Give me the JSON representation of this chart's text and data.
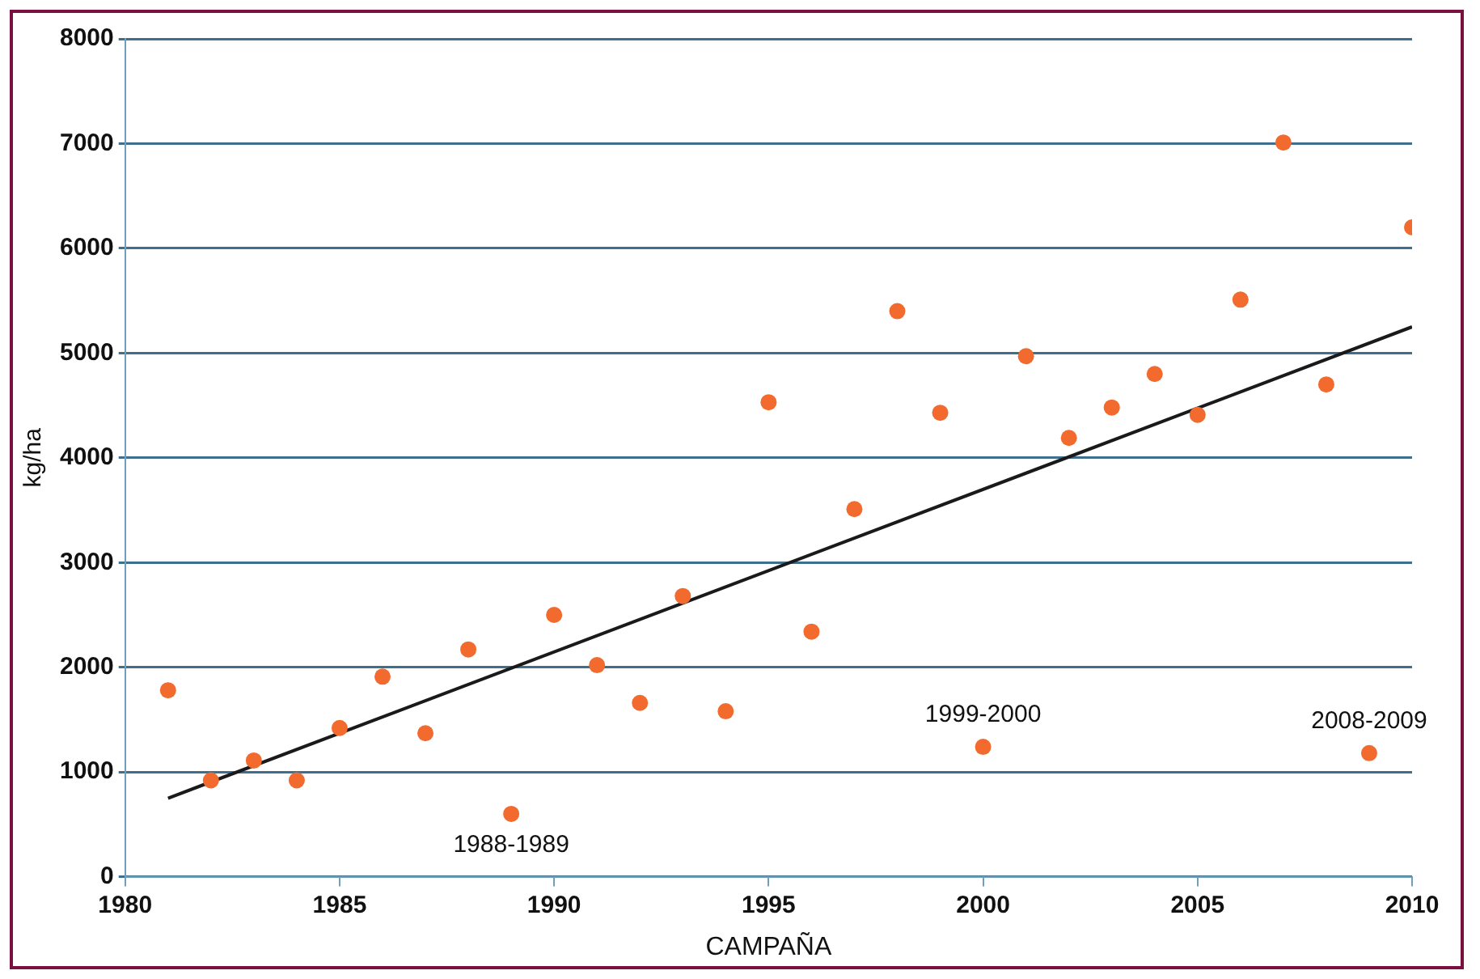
{
  "chart_data": {
    "type": "scatter",
    "xlabel": "CAMPAÑA",
    "ylabel": "kg/ha",
    "xlim": [
      1980,
      2010
    ],
    "xticks": [
      1980,
      1985,
      1990,
      1995,
      2000,
      2005,
      2010
    ],
    "ylim": [
      0,
      8000
    ],
    "yticks": [
      0,
      1000,
      2000,
      3000,
      4000,
      5000,
      6000,
      7000,
      8000
    ],
    "grid": "y",
    "legend": false,
    "marker": "circle",
    "series": [
      {
        "type": "scatter",
        "color": "#f26a2e",
        "x": [
          1981,
          1982,
          1983,
          1984,
          1985,
          1986,
          1987,
          1988,
          1989,
          1990,
          1991,
          1992,
          1993,
          1994,
          1995,
          1996,
          1997,
          1998,
          1999,
          2000,
          2001,
          2002,
          2003,
          2004,
          2005,
          2006,
          2007,
          2008,
          2009,
          2010
        ],
        "values": [
          1780,
          920,
          1110,
          920,
          1420,
          1910,
          1370,
          2170,
          600,
          2500,
          2020,
          1660,
          2680,
          1580,
          4530,
          2340,
          3510,
          5400,
          4430,
          1240,
          4970,
          4190,
          4480,
          4800,
          4410,
          5510,
          7010,
          4700,
          1180,
          6200
        ]
      },
      {
        "type": "line",
        "color": "#1a1a1a",
        "line_style": "solid",
        "marker": "none",
        "x": [
          1981,
          2010
        ],
        "values": [
          750,
          5250
        ]
      }
    ],
    "annotations": [
      {
        "text": "1988-1989",
        "x": 1989,
        "y": 600
      },
      {
        "text": "1999-2000",
        "x": 2000,
        "y": 1240
      },
      {
        "text": "2008-2009",
        "x": 2009,
        "y": 1180
      }
    ]
  }
}
